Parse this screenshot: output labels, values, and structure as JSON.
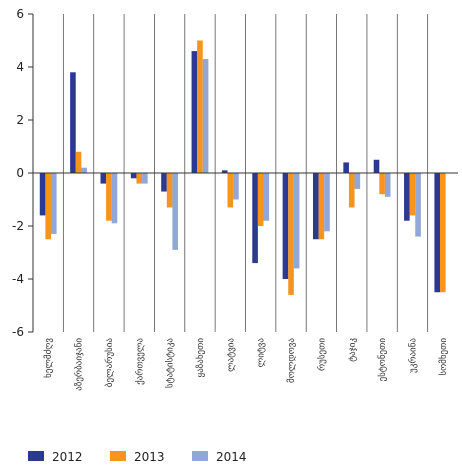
{
  "chart_data": {
    "type": "bar",
    "title": "",
    "xlabel": "",
    "ylabel": "",
    "ylim": [
      -6,
      6
    ],
    "yticks": [
      -6,
      -4,
      -2,
      0,
      2,
      4,
      6
    ],
    "grid": "vertical-separators",
    "legend_position": "bottom-left",
    "categories": [
      "ხელმძღვ",
      "აზერბაიჯანი",
      "ბელარუსია",
      "ქართველა",
      "სტატისტიკა",
      "ყაზახეთი",
      "ლატვია",
      "ლიტვა",
      "მოლდოვა",
      "რუსეთი",
      "ტაჯიკ",
      "ესტონეთი",
      "უკრაინა",
      "სომხეთი"
    ],
    "series": [
      {
        "name": "2012",
        "color": "#2b3990",
        "values": [
          -1.6,
          3.8,
          -0.4,
          -0.2,
          -0.7,
          4.6,
          0.1,
          -3.4,
          -4.0,
          -2.5,
          0.4,
          0.5,
          -1.8,
          -4.5
        ]
      },
      {
        "name": "2013",
        "color": "#f7941d",
        "values": [
          -2.5,
          0.8,
          -1.8,
          -0.4,
          -1.3,
          5.0,
          -1.3,
          -2.0,
          -4.6,
          -2.5,
          -1.3,
          -0.8,
          -1.6,
          -4.5
        ]
      },
      {
        "name": "2014",
        "color": "#8fa8d8",
        "values": [
          -2.3,
          0.2,
          -1.9,
          -0.4,
          -2.9,
          4.3,
          -1.0,
          -1.8,
          -3.6,
          -2.2,
          -0.6,
          -0.9,
          -2.4,
          null
        ]
      }
    ]
  }
}
